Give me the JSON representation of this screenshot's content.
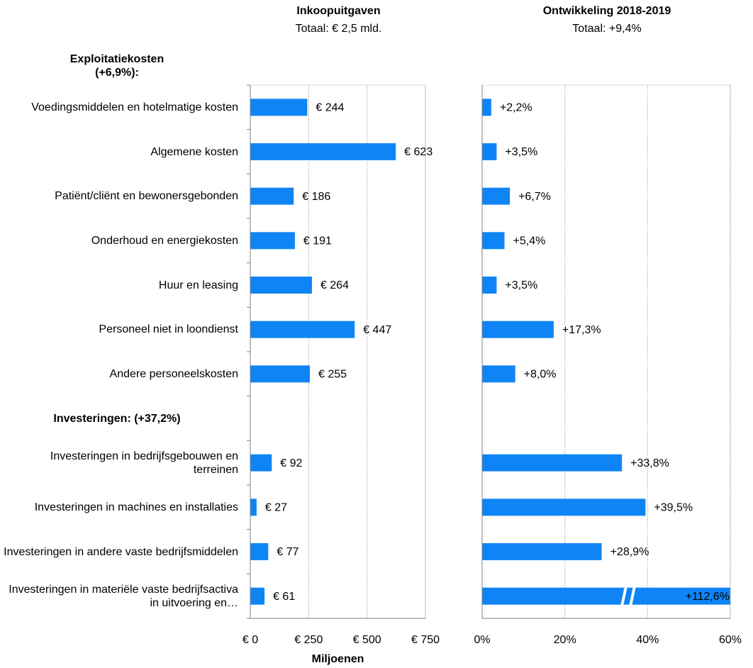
{
  "chart_data": [
    {
      "type": "bar",
      "orientation": "horizontal",
      "title": "Inkoopuitgaven",
      "subtitle": "Totaal: € 2,5 mld.",
      "group_label": "Exploitatiekosten (+6,9%):",
      "categories": [
        "Voedingsmiddelen en hotelmatige kosten",
        "Algemene kosten",
        "Patiënt/cliënt en bewonersgebonden",
        "Onderhoud en energiekosten",
        "Huur en leasing",
        "Personeel niet in loondienst",
        "Andere personeelskosten",
        "Investeringen: (+37,2%)",
        "Investeringen in bedrijfsgebouwen en terreinen",
        "Investeringen in machines en installaties",
        "Investeringen in andere vaste bedrijfsmiddelen",
        "Investeringen in materiële vaste bedrijfsactiva in uitvoering en…"
      ],
      "values": [
        244,
        623,
        186,
        191,
        264,
        447,
        255,
        null,
        92,
        27,
        77,
        61
      ],
      "value_labels": [
        "€ 244",
        "€ 623",
        "€ 186",
        "€ 191",
        "€ 264",
        "€ 447",
        "€ 255",
        null,
        "€ 92",
        "€ 27",
        "€ 77",
        "€ 61"
      ],
      "color": "#0f85f5",
      "xlim": [
        0,
        750
      ],
      "xticks": [
        {
          "value": 0,
          "label": "€ 0"
        },
        {
          "value": 250,
          "label": "€ 250"
        },
        {
          "value": 500,
          "label": "€ 500"
        },
        {
          "value": 750,
          "label": "€ 750"
        }
      ],
      "xlabel": "Miljoenen",
      "grid": true
    },
    {
      "type": "bar",
      "orientation": "horizontal",
      "title": "Ontwikkeling 2018-2019",
      "subtitle": "Totaal: +9,4%",
      "values": [
        2.2,
        3.5,
        6.7,
        5.4,
        3.5,
        17.3,
        8.0,
        null,
        33.8,
        39.5,
        28.9,
        112.6
      ],
      "value_labels": [
        "+2,2%",
        "+3,5%",
        "+6,7%",
        "+5,4%",
        "+3,5%",
        "+17,3%",
        "+8,0%",
        null,
        "+33,8%",
        "+39,5%",
        "+28,9%",
        "+112,6%"
      ],
      "color": "#0f85f5",
      "xlim": [
        0,
        60
      ],
      "xticks": [
        {
          "value": 0,
          "label": "0%"
        },
        {
          "value": 20,
          "label": "20%"
        },
        {
          "value": 40,
          "label": "40%"
        },
        {
          "value": 60,
          "label": "60%"
        }
      ],
      "grid": true
    }
  ]
}
